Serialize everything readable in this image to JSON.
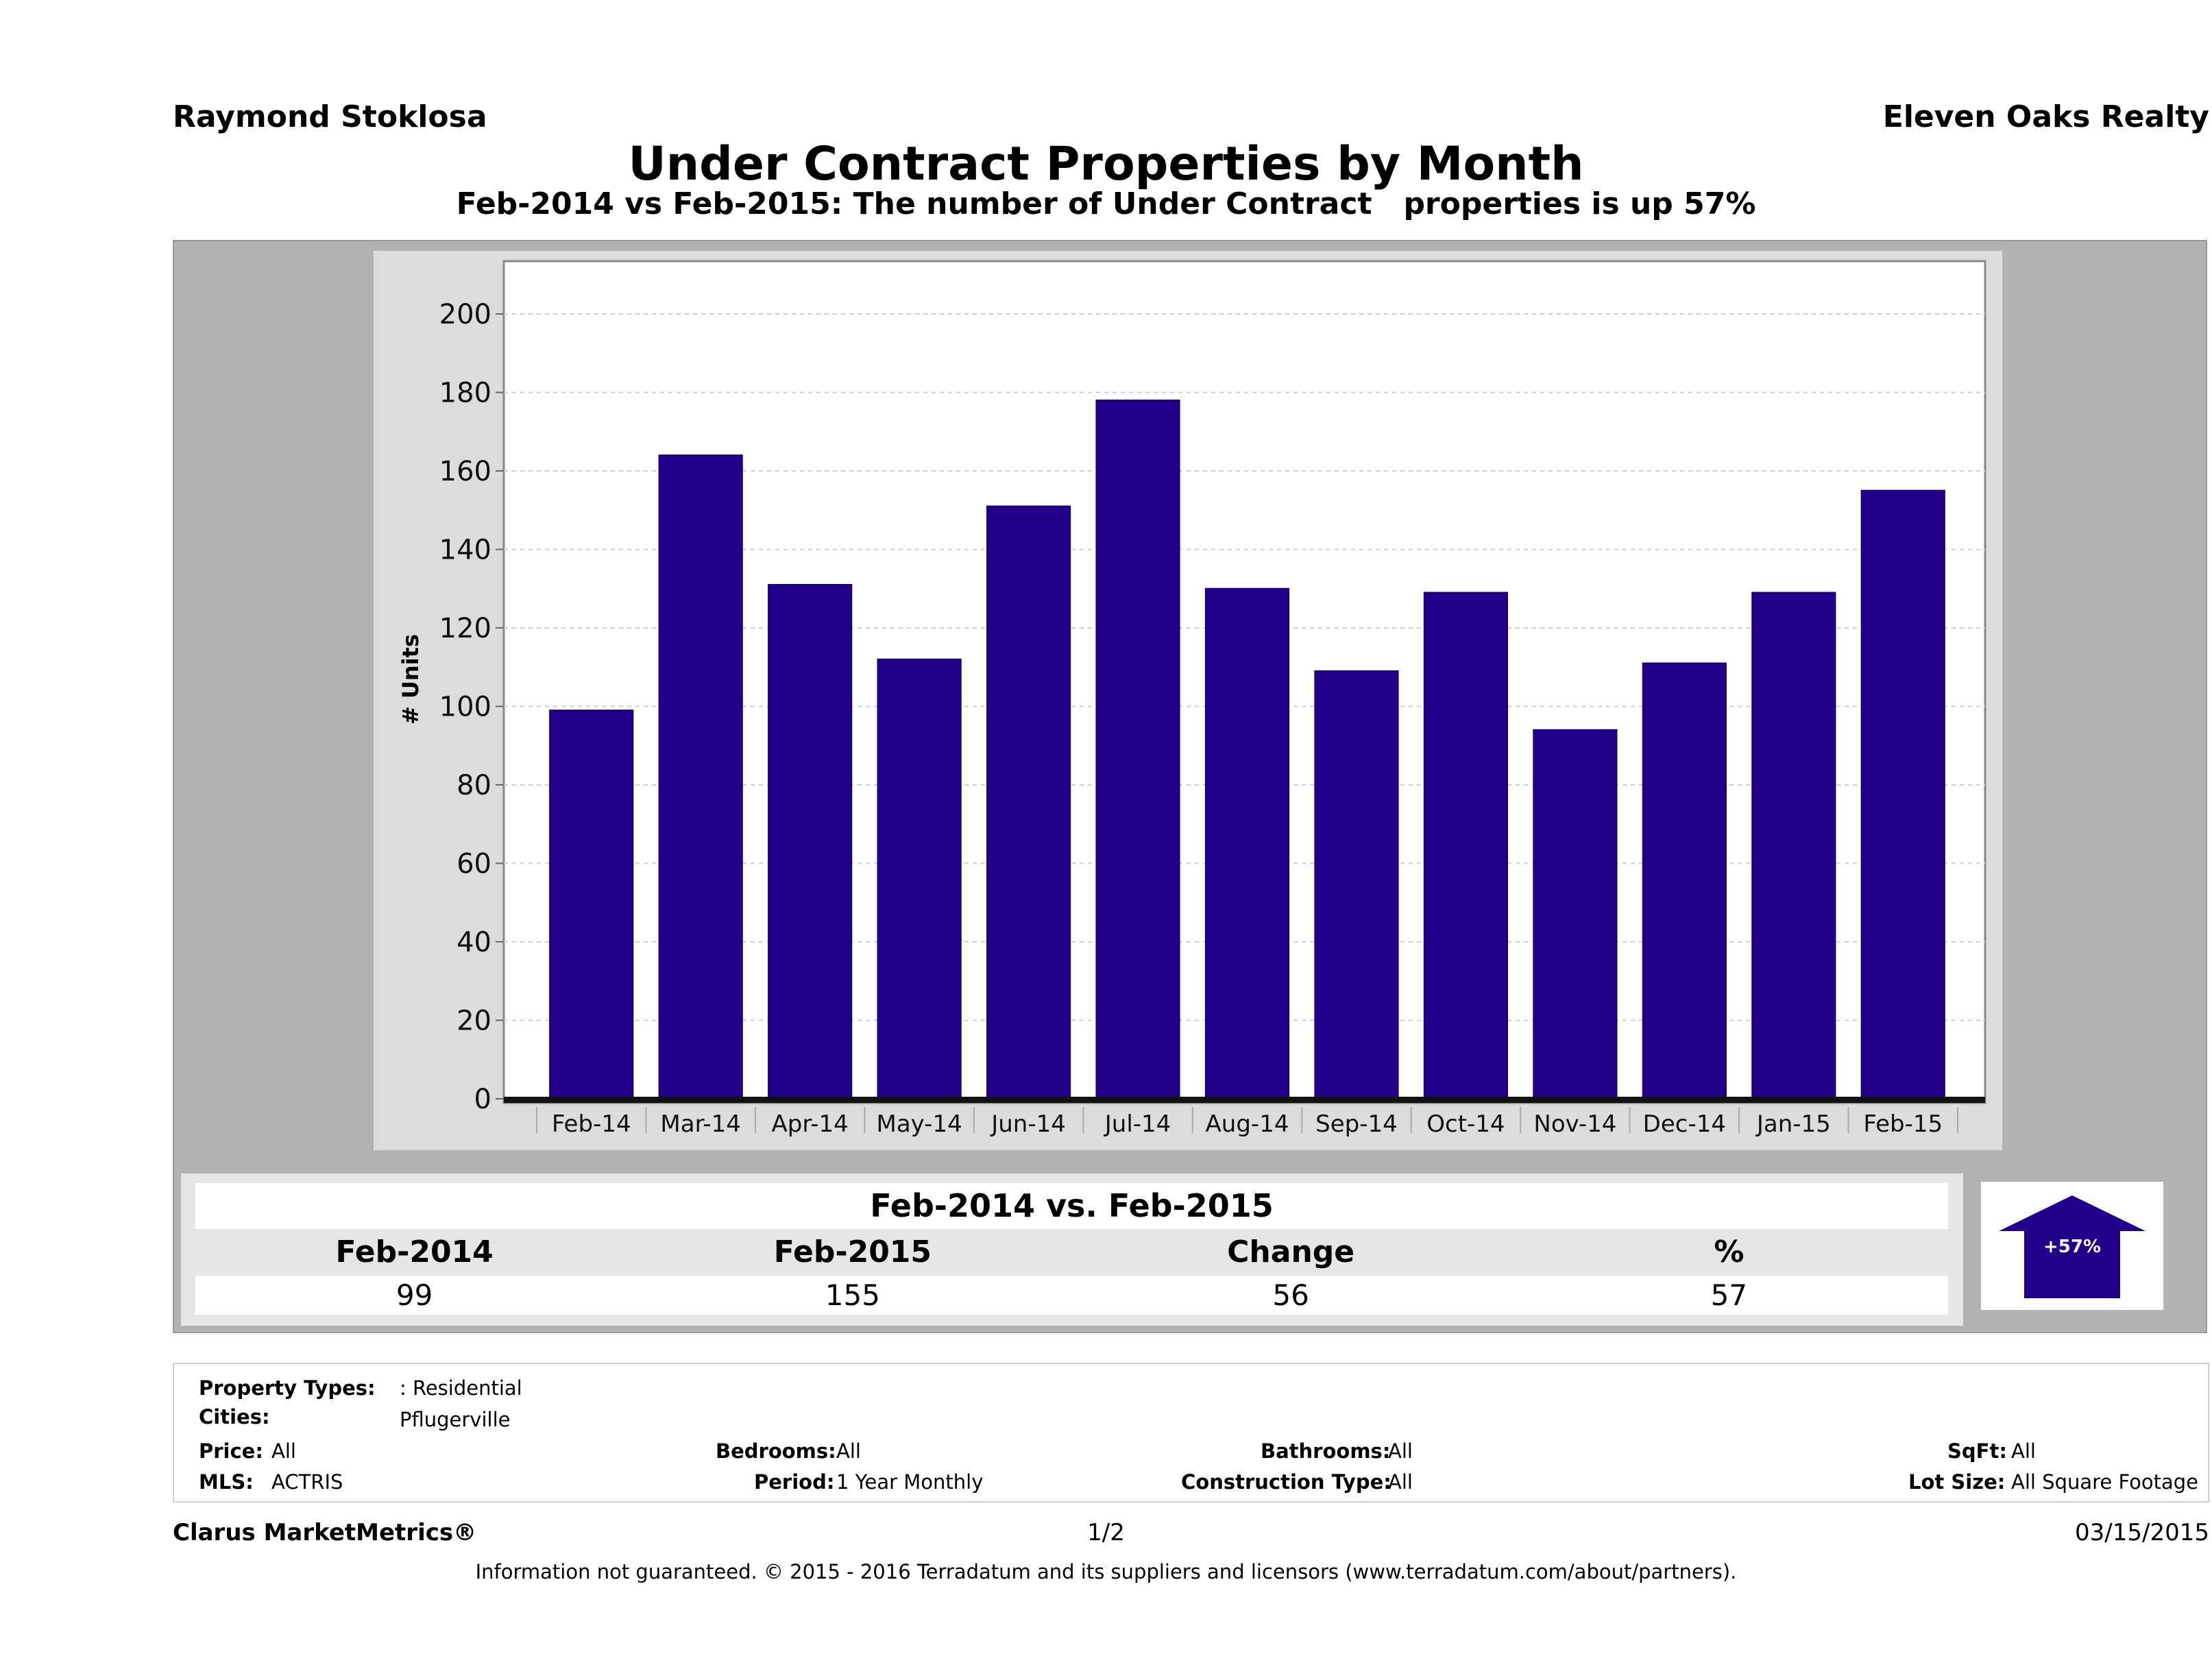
{
  "header": {
    "agent": "Raymond Stoklosa",
    "brokerage": "Eleven Oaks Realty",
    "title": "Under Contract Properties by Month",
    "subtitle": "Feb-2014 vs Feb-2015: The number of Under Contract   properties is up 57%"
  },
  "colors": {
    "bar": "#22008a",
    "panel": "#b3b3b3",
    "chart_bg": "#dcdcdc"
  },
  "chart_data": {
    "type": "bar",
    "title": "Under Contract Properties by Month",
    "xlabel": "",
    "ylabel": "# Units",
    "ylim": [
      0,
      210
    ],
    "yticks": [
      0,
      20,
      40,
      60,
      80,
      100,
      120,
      140,
      160,
      180,
      200
    ],
    "grid": true,
    "legend": "none",
    "categories": [
      "Feb-14",
      "Mar-14",
      "Apr-14",
      "May-14",
      "Jun-14",
      "Jul-14",
      "Aug-14",
      "Sep-14",
      "Oct-14",
      "Nov-14",
      "Dec-14",
      "Jan-15",
      "Feb-15"
    ],
    "values": [
      99,
      164,
      131,
      112,
      151,
      178,
      130,
      109,
      129,
      94,
      111,
      129,
      155
    ]
  },
  "summary": {
    "title": "Feb-2014 vs. Feb-2015",
    "headers": [
      "Feb-2014",
      "Feb-2015",
      "Change",
      "%"
    ],
    "values": [
      "99",
      "155",
      "56",
      "57"
    ],
    "badge": "+57%",
    "direction": "up-arrow-icon"
  },
  "details": {
    "property_types_label": "Property Types:",
    "property_types": ": Residential",
    "cities_label": "Cities:",
    "cities": "Pflugerville",
    "price_label": "Price:",
    "price": "All",
    "bedrooms_label": "Bedrooms:",
    "bedrooms": "All",
    "bathrooms_label": "Bathrooms:",
    "bathrooms": "All",
    "sqft_label": "SqFt:",
    "sqft": "All",
    "mls_label": "MLS:",
    "mls": "ACTRIS",
    "period_label": "Period:",
    "period": "1 Year Monthly",
    "construction_label": "Construction Type:",
    "construction": "All",
    "lot_label": "Lot Size:",
    "lot": "All Square Footage"
  },
  "footer": {
    "product": "Clarus MarketMetrics®",
    "page": "1/2",
    "date": "03/15/2015",
    "disclaimer": "Information not guaranteed. © 2015 - 2016 Terradatum and its suppliers and licensors (www.terradatum.com/about/partners)."
  }
}
